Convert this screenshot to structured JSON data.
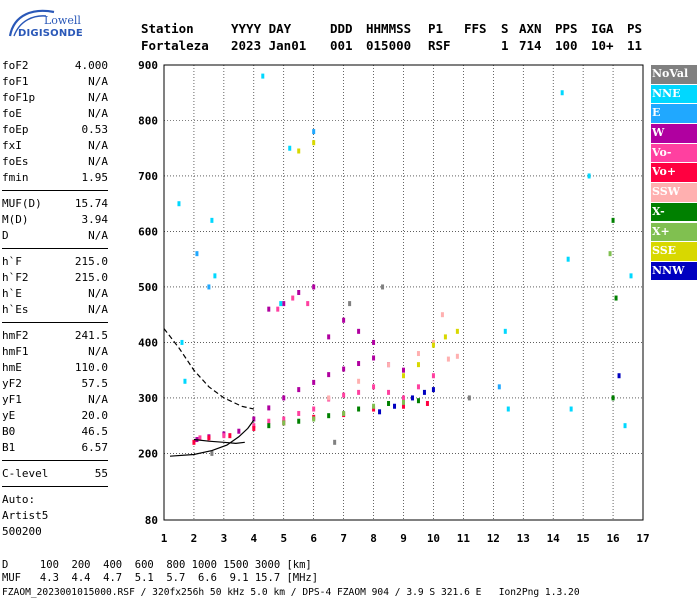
{
  "logo": {
    "line1": "Lowell",
    "line2": "DIGISONDE"
  },
  "header": {
    "col_station": {
      "h": "Station",
      "v": "Fortaleza"
    },
    "col_date": {
      "h": "YYYY DAY",
      "v": "2023 Jan01"
    },
    "col_ddd": {
      "h": "DDD",
      "v": "001"
    },
    "col_time": {
      "h": "HHMMSS",
      "v": "015000"
    },
    "col_p1": {
      "h": "P1",
      "v": "RSF"
    },
    "col_ffs": {
      "h": "FFS",
      "v": ""
    },
    "col_s": {
      "h": "S",
      "v": "1"
    },
    "col_axn": {
      "h": "AXN",
      "v": "714"
    },
    "col_pps": {
      "h": "PPS",
      "v": "100"
    },
    "col_iga": {
      "h": "IGA",
      "v": "10+"
    },
    "col_ps": {
      "h": "PS",
      "v": "11"
    }
  },
  "params": {
    "g1": [
      {
        "name": "foF2",
        "value": "4.000"
      },
      {
        "name": "foF1",
        "value": "N/A"
      },
      {
        "name": "foF1p",
        "value": "N/A"
      },
      {
        "name": "foE",
        "value": "N/A"
      },
      {
        "name": "foEp",
        "value": "0.53"
      },
      {
        "name": "fxI",
        "value": "N/A"
      },
      {
        "name": "foEs",
        "value": "N/A"
      },
      {
        "name": "fmin",
        "value": "1.95"
      }
    ],
    "g2": [
      {
        "name": "MUF(D)",
        "value": "15.74"
      },
      {
        "name": "M(D)",
        "value": "3.94"
      },
      {
        "name": "D",
        "value": "N/A"
      }
    ],
    "g3": [
      {
        "name": "h`F",
        "value": "215.0"
      },
      {
        "name": "h`F2",
        "value": "215.0"
      },
      {
        "name": "h`E",
        "value": "N/A"
      },
      {
        "name": "h`Es",
        "value": "N/A"
      }
    ],
    "g4": [
      {
        "name": "hmF2",
        "value": "241.5"
      },
      {
        "name": "hmF1",
        "value": "N/A"
      },
      {
        "name": "hmE",
        "value": "110.0"
      },
      {
        "name": "yF2",
        "value": "57.5"
      },
      {
        "name": "yF1",
        "value": "N/A"
      },
      {
        "name": "yE",
        "value": "20.0"
      },
      {
        "name": "B0",
        "value": "46.5"
      },
      {
        "name": "B1",
        "value": "6.57"
      }
    ],
    "clevel": {
      "name": "C-level",
      "value": "55"
    },
    "auto": [
      "Auto:",
      "Artist5",
      "500200"
    ]
  },
  "legend": [
    {
      "label": "NoVal",
      "color": "#808080"
    },
    {
      "label": "NNE",
      "color": "#00d8ff"
    },
    {
      "label": "E",
      "color": "#20a8ff"
    },
    {
      "label": "W",
      "color": "#b000a0"
    },
    {
      "label": "Vo-",
      "color": "#ff40a0"
    },
    {
      "label": "Vo+",
      "color": "#ff0040"
    },
    {
      "label": "SSW",
      "color": "#ffb0b0"
    },
    {
      "label": "X-",
      "color": "#008000"
    },
    {
      "label": "X+",
      "color": "#80c050"
    },
    {
      "label": "SSE",
      "color": "#d8d800"
    },
    {
      "label": "NNW",
      "color": "#0000c0"
    }
  ],
  "footer": {
    "d_line": "D     100  200  400  600  800 1000 1500 3000 [km]",
    "muf_line": "MUF   4.3  4.4  4.7  5.1  5.7  6.6  9.1 15.7 [MHz]",
    "file_line": "FZAOM_2023001015000.RSF / 320fx256h 50 kHz 5.0 km / DPS-4 FZAOM 904 / 3.9 S 321.6 E   Ion2Png 1.3.20"
  },
  "chart_data": {
    "type": "scatter",
    "title": "",
    "xlabel": "",
    "ylabel": "",
    "xlim": [
      1,
      17
    ],
    "ylim": [
      80,
      900
    ],
    "x_ticks": [
      1,
      2,
      3,
      4,
      5,
      6,
      7,
      8,
      9,
      10,
      11,
      12,
      13,
      14,
      15,
      16,
      17
    ],
    "y_ticks": [
      200,
      300,
      400,
      500,
      600,
      700,
      800,
      900
    ],
    "y_bottom_label": "80",
    "grid": true,
    "series": [
      {
        "legend": "W",
        "points": [
          [
            2.1,
            225
          ],
          [
            2.5,
            230
          ],
          [
            3.0,
            235
          ],
          [
            3.5,
            240
          ],
          [
            4.0,
            262
          ],
          [
            4.5,
            282
          ],
          [
            5.0,
            300
          ],
          [
            5.5,
            315
          ],
          [
            6.0,
            328
          ],
          [
            6.5,
            342
          ],
          [
            7.0,
            352
          ],
          [
            7.5,
            362
          ],
          [
            8.0,
            372
          ],
          [
            8.5,
            360
          ],
          [
            9.0,
            350
          ],
          [
            4.5,
            460
          ],
          [
            5.0,
            470
          ],
          [
            5.5,
            490
          ],
          [
            6.0,
            500
          ],
          [
            6.5,
            410
          ],
          [
            7.0,
            440
          ],
          [
            7.5,
            420
          ],
          [
            8.0,
            400
          ]
        ]
      },
      {
        "legend": "Vo-",
        "points": [
          [
            2.2,
            228
          ],
          [
            3.0,
            232
          ],
          [
            4.0,
            250
          ],
          [
            4.5,
            258
          ],
          [
            5.0,
            262
          ],
          [
            5.5,
            272
          ],
          [
            6.0,
            280
          ],
          [
            6.5,
            298
          ],
          [
            7.0,
            305
          ],
          [
            7.5,
            310
          ],
          [
            8.0,
            320
          ],
          [
            8.5,
            310
          ],
          [
            9.0,
            300
          ],
          [
            9.5,
            320
          ],
          [
            10.0,
            340
          ],
          [
            4.8,
            460
          ],
          [
            5.3,
            480
          ],
          [
            5.8,
            470
          ]
        ]
      },
      {
        "legend": "Vo+",
        "points": [
          [
            2.0,
            220
          ],
          [
            2.5,
            228
          ],
          [
            3.2,
            232
          ],
          [
            4.0,
            245
          ],
          [
            5.0,
            255
          ],
          [
            6.0,
            265
          ],
          [
            7.0,
            270
          ],
          [
            8.0,
            280
          ],
          [
            9.0,
            285
          ],
          [
            9.8,
            290
          ]
        ]
      },
      {
        "legend": "SSW",
        "points": [
          [
            6.5,
            300
          ],
          [
            7.5,
            330
          ],
          [
            8.5,
            360
          ],
          [
            9.5,
            380
          ],
          [
            10.0,
            400
          ],
          [
            10.3,
            450
          ],
          [
            10.5,
            370
          ],
          [
            10.8,
            375
          ]
        ]
      },
      {
        "legend": "X-",
        "points": [
          [
            4.5,
            250
          ],
          [
            5.5,
            258
          ],
          [
            6.5,
            268
          ],
          [
            7.5,
            280
          ],
          [
            8.5,
            290
          ],
          [
            9.5,
            295
          ],
          [
            16.0,
            620
          ],
          [
            16.1,
            480
          ],
          [
            16.0,
            300
          ]
        ]
      },
      {
        "legend": "X+",
        "points": [
          [
            5.0,
            255
          ],
          [
            6.0,
            262
          ],
          [
            7.0,
            272
          ],
          [
            8.0,
            285
          ],
          [
            9.0,
            292
          ],
          [
            15.9,
            560
          ]
        ]
      },
      {
        "legend": "SSE",
        "points": [
          [
            9.5,
            360
          ],
          [
            10.0,
            395
          ],
          [
            10.4,
            410
          ],
          [
            10.8,
            420
          ],
          [
            9.0,
            340
          ],
          [
            6.0,
            760
          ],
          [
            5.5,
            745
          ]
        ]
      },
      {
        "legend": "NNW",
        "points": [
          [
            8.2,
            275
          ],
          [
            8.7,
            285
          ],
          [
            9.3,
            300
          ],
          [
            9.7,
            310
          ],
          [
            10.0,
            315
          ],
          [
            16.2,
            340
          ]
        ]
      },
      {
        "legend": "NNE",
        "points": [
          [
            1.5,
            650
          ],
          [
            1.6,
            400
          ],
          [
            1.7,
            330
          ],
          [
            2.6,
            620
          ],
          [
            2.7,
            520
          ],
          [
            4.3,
            880
          ],
          [
            4.9,
            470
          ],
          [
            5.2,
            750
          ],
          [
            12.4,
            420
          ],
          [
            12.5,
            280
          ],
          [
            14.3,
            850
          ],
          [
            14.5,
            550
          ],
          [
            14.6,
            280
          ],
          [
            15.2,
            700
          ],
          [
            16.4,
            250
          ],
          [
            16.6,
            520
          ]
        ]
      },
      {
        "legend": "E",
        "points": [
          [
            2.1,
            560
          ],
          [
            2.5,
            500
          ],
          [
            6.0,
            780
          ],
          [
            12.2,
            320
          ]
        ]
      },
      {
        "legend": "NoVal",
        "points": [
          [
            2.6,
            200
          ],
          [
            6.7,
            220
          ],
          [
            7.2,
            470
          ],
          [
            8.3,
            500
          ],
          [
            11.2,
            300
          ]
        ]
      }
    ],
    "trace_curves": [
      {
        "style": "solid",
        "points": [
          [
            1.2,
            195
          ],
          [
            2.0,
            198
          ],
          [
            2.6,
            205
          ],
          [
            3.1,
            215
          ],
          [
            3.5,
            230
          ],
          [
            3.8,
            245
          ],
          [
            4.0,
            260
          ]
        ]
      },
      {
        "style": "dashed",
        "points": [
          [
            1.0,
            425
          ],
          [
            1.5,
            390
          ],
          [
            2.0,
            350
          ],
          [
            2.5,
            320
          ],
          [
            3.0,
            300
          ],
          [
            3.6,
            285
          ],
          [
            4.0,
            280
          ]
        ]
      },
      {
        "style": "solid",
        "points": [
          [
            2.0,
            225
          ],
          [
            2.5,
            222
          ],
          [
            3.0,
            220
          ],
          [
            3.4,
            218
          ],
          [
            3.7,
            220
          ]
        ]
      }
    ]
  }
}
